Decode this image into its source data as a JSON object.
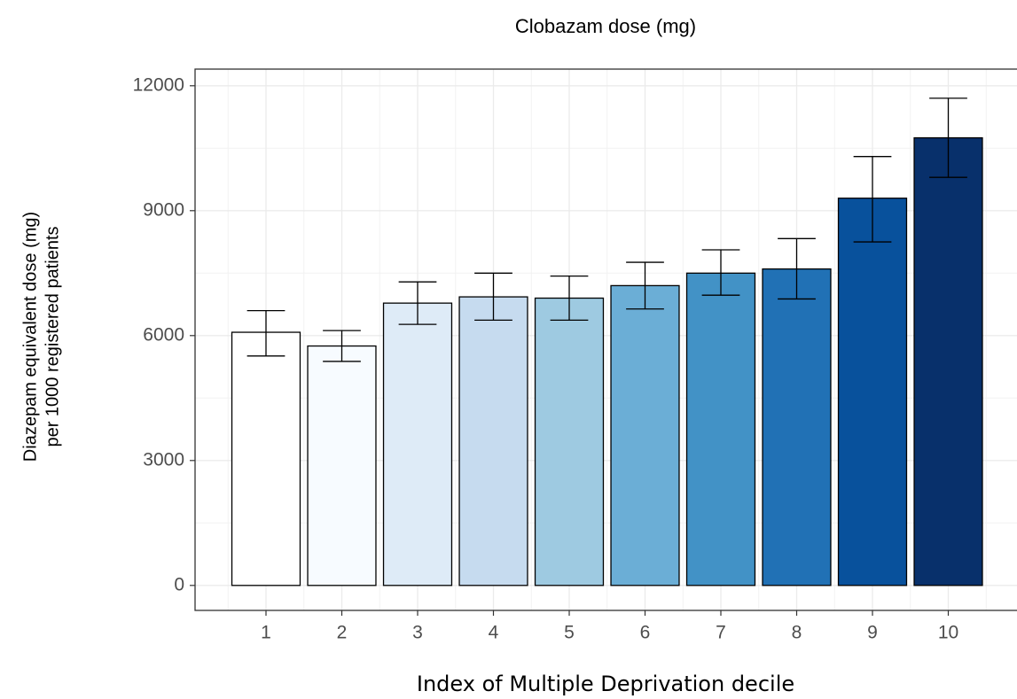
{
  "chart_data": {
    "type": "bar",
    "title": "Clobazam dose (mg)",
    "x_label": "Index of Multiple Deprivation decile",
    "y_label": [
      "Diazepam equivalent dose (mg)",
      "per 1000 registered patients"
    ],
    "categories": [
      "1",
      "2",
      "3",
      "4",
      "5",
      "6",
      "7",
      "8",
      "9",
      "10"
    ],
    "values": [
      6080,
      5750,
      6780,
      6930,
      6900,
      7200,
      7500,
      7600,
      9300,
      10750
    ],
    "lower": [
      5510,
      5380,
      6270,
      6370,
      6370,
      6640,
      6970,
      6880,
      8250,
      9800
    ],
    "upper": [
      6600,
      6120,
      7290,
      7500,
      7430,
      7760,
      8060,
      8330,
      10300,
      11700
    ],
    "colors": [
      "#ffffff",
      "#f7fbff",
      "#deebf7",
      "#c6dbef",
      "#9ecae1",
      "#6baed6",
      "#4292c6",
      "#2171b5",
      "#08519c",
      "#08306b"
    ],
    "ylim": [
      -600,
      12400
    ],
    "yticks": [
      0,
      3000,
      6000,
      9000,
      12000
    ],
    "grid": true
  }
}
